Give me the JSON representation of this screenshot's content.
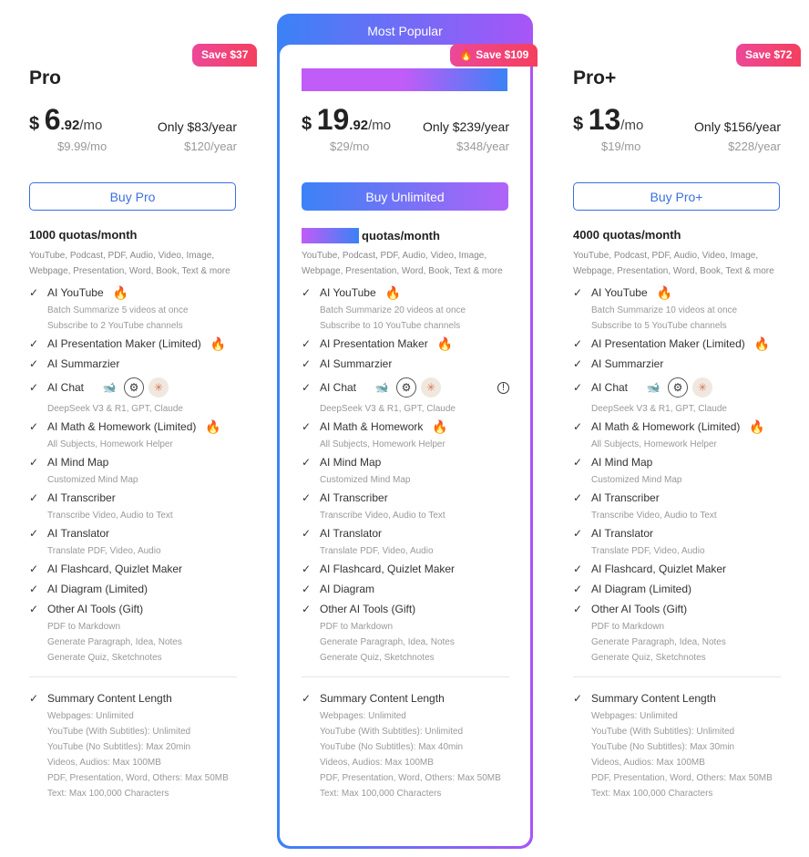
{
  "popular_label": "Most Popular",
  "plans": [
    {
      "name": "Pro",
      "save": "Save $37",
      "currency": "$",
      "price_int": "6",
      "price_cents": ".92",
      "per": "/mo",
      "year": "Only $83/year",
      "orig_mo": "$9.99/mo",
      "orig_year": "$120/year",
      "buy": "Buy Pro",
      "quota": "1000 quotas/month",
      "formats": "YouTube, Podcast, PDF, Audio, Video, Image, Webpage, Presentation, Word, Book, Text & more",
      "features": [
        {
          "label": "AI YouTube",
          "hot": true,
          "subs": [
            "Batch Summarize 5 videos at once",
            "Subscribe to 2 YouTube channels"
          ]
        },
        {
          "label": "AI Presentation Maker (Limited)",
          "hot": true,
          "subs": []
        },
        {
          "label": "AI Summarzier",
          "subs": []
        },
        {
          "label": "AI Chat",
          "chat": true,
          "subs": [
            "DeepSeek V3 & R1, GPT, Claude"
          ]
        },
        {
          "label": "AI Math & Homework (Limited)",
          "hot": true,
          "subs": [
            "All Subjects, Homework Helper"
          ]
        },
        {
          "label": "AI Mind Map",
          "subs": [
            "Customized Mind Map"
          ]
        },
        {
          "label": "AI Transcriber",
          "subs": [
            "Transcribe Video, Audio to Text"
          ]
        },
        {
          "label": "AI Translator",
          "subs": [
            "Translate PDF, Video, Audio"
          ]
        },
        {
          "label": "AI Flashcard, Quizlet Maker",
          "subs": []
        },
        {
          "label": "AI Diagram (Limited)",
          "subs": []
        },
        {
          "label": "Other AI Tools (Gift)",
          "subs": [
            "PDF to Markdown",
            "Generate Paragraph, Idea, Notes",
            "Generate Quiz, Sketchnotes"
          ]
        }
      ],
      "summary": {
        "label": "Summary Content Length",
        "subs": [
          "Webpages: Unlimited",
          "YouTube (With Subtitles): Unlimited",
          "YouTube (No Subtitles): Max 20min",
          "Videos, Audios: Max 100MB",
          "PDF, Presentation, Word, Others: Max 50MB",
          "Text: Max 100,000 Characters"
        ]
      }
    },
    {
      "name": "",
      "save": "Save $109",
      "currency": "$",
      "price_int": "19",
      "price_cents": ".92",
      "per": "/mo",
      "year": "Only $239/year",
      "orig_mo": "$29/mo",
      "orig_year": "$348/year",
      "buy": "Buy Unlimited",
      "quota": "quotas/month",
      "formats": "YouTube, Podcast, PDF, Audio, Video, Image, Webpage, Presentation, Word, Book, Text & more",
      "features": [
        {
          "label": "AI YouTube",
          "hot": true,
          "subs": [
            "Batch Summarize 20 videos at once",
            "Subscribe to 10 YouTube channels"
          ]
        },
        {
          "label": "AI Presentation Maker",
          "hot": true,
          "subs": []
        },
        {
          "label": "AI Summarzier",
          "subs": []
        },
        {
          "label": "AI Chat",
          "chat": true,
          "info": true,
          "subs": [
            "DeepSeek V3 & R1, GPT, Claude"
          ]
        },
        {
          "label": "AI Math & Homework",
          "hot": true,
          "subs": [
            "All Subjects, Homework Helper"
          ]
        },
        {
          "label": "AI Mind Map",
          "subs": [
            "Customized Mind Map"
          ]
        },
        {
          "label": "AI Transcriber",
          "subs": [
            "Transcribe Video, Audio to Text"
          ]
        },
        {
          "label": "AI Translator",
          "subs": [
            "Translate PDF, Video, Audio"
          ]
        },
        {
          "label": "AI Flashcard, Quizlet Maker",
          "subs": []
        },
        {
          "label": "AI Diagram",
          "subs": []
        },
        {
          "label": "Other AI Tools (Gift)",
          "subs": [
            "PDF to Markdown",
            "Generate Paragraph, Idea, Notes",
            "Generate Quiz, Sketchnotes"
          ]
        }
      ],
      "summary": {
        "label": "Summary Content Length",
        "subs": [
          "Webpages: Unlimited",
          "YouTube (With Subtitles): Unlimited",
          "YouTube (No Subtitles): Max 40min",
          "Videos, Audios: Max 100MB",
          "PDF, Presentation, Word, Others: Max 50MB",
          "Text: Max 100,000 Characters"
        ]
      }
    },
    {
      "name": "Pro+",
      "save": "Save $72",
      "currency": "$",
      "price_int": "13",
      "price_cents": "",
      "per": "/mo",
      "year": "Only $156/year",
      "orig_mo": "$19/mo",
      "orig_year": "$228/year",
      "buy": "Buy Pro+",
      "quota": "4000 quotas/month",
      "formats": "YouTube, Podcast, PDF, Audio, Video, Image, Webpage, Presentation, Word, Book, Text & more",
      "features": [
        {
          "label": "AI YouTube",
          "hot": true,
          "subs": [
            "Batch Summarize 10 videos at once",
            "Subscribe to 5 YouTube channels"
          ]
        },
        {
          "label": "AI Presentation Maker (Limited)",
          "hot": true,
          "subs": []
        },
        {
          "label": "AI Summarzier",
          "subs": []
        },
        {
          "label": "AI Chat",
          "chat": true,
          "subs": [
            "DeepSeek V3 & R1, GPT, Claude"
          ]
        },
        {
          "label": "AI Math & Homework (Limited)",
          "hot": true,
          "subs": [
            "All Subjects, Homework Helper"
          ]
        },
        {
          "label": "AI Mind Map",
          "subs": [
            "Customized Mind Map"
          ]
        },
        {
          "label": "AI Transcriber",
          "subs": [
            "Transcribe Video, Audio to Text"
          ]
        },
        {
          "label": "AI Translator",
          "subs": [
            "Translate PDF, Video, Audio"
          ]
        },
        {
          "label": "AI Flashcard, Quizlet Maker",
          "subs": []
        },
        {
          "label": "AI Diagram (Limited)",
          "subs": []
        },
        {
          "label": "Other AI Tools (Gift)",
          "subs": [
            "PDF to Markdown",
            "Generate Paragraph, Idea, Notes",
            "Generate Quiz, Sketchnotes"
          ]
        }
      ],
      "summary": {
        "label": "Summary Content Length",
        "subs": [
          "Webpages: Unlimited",
          "YouTube (With Subtitles): Unlimited",
          "YouTube (No Subtitles): Max 30min",
          "Videos, Audios: Max 100MB",
          "PDF, Presentation, Word, Others: Max 50MB",
          "Text: Max 100,000 Characters"
        ]
      }
    }
  ],
  "icons": {
    "check": "check-icon",
    "hot": "fire-icon",
    "models": [
      "deepseek-icon",
      "openai-icon",
      "claude-icon"
    ],
    "info": "info-icon"
  }
}
